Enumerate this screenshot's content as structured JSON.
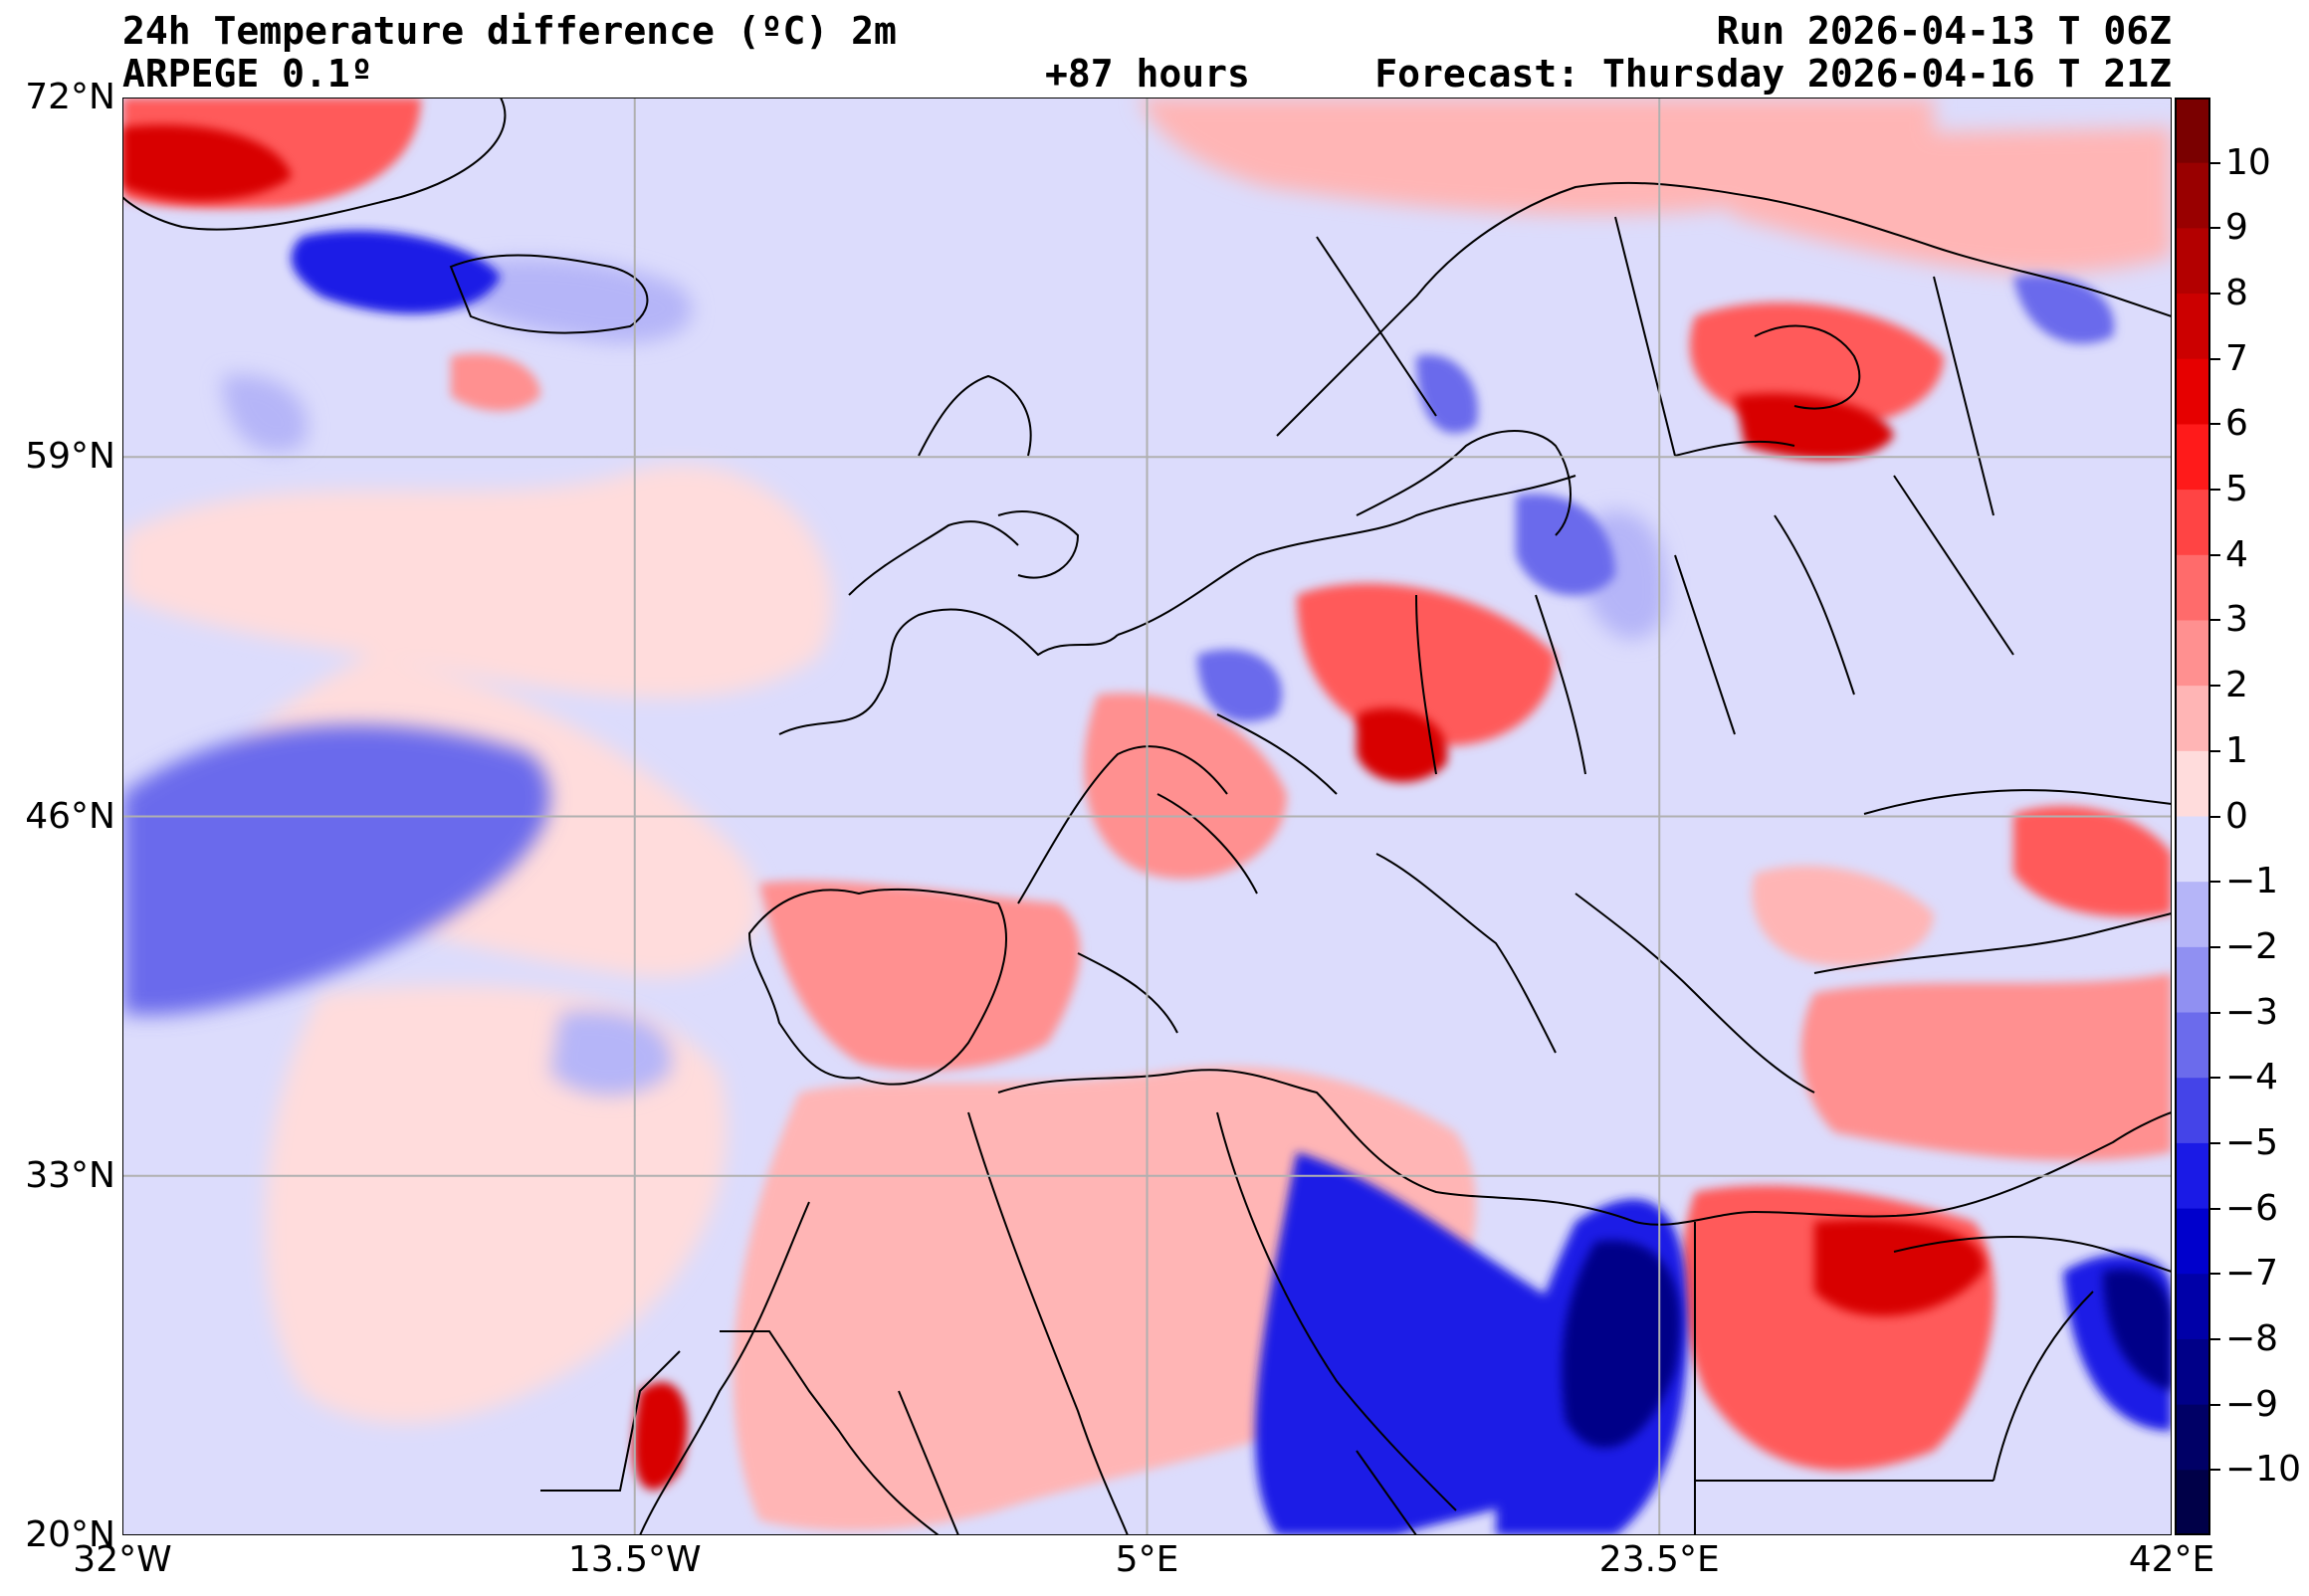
{
  "header": {
    "title": "24h Temperature difference (ºC) 2m",
    "model": "ARPEGE 0.1º",
    "lead_time": "+87 hours",
    "run": "Run 2026-04-13 T 06Z",
    "forecast": "Forecast: Thursday 2026-04-16 T 21Z"
  },
  "axes": {
    "lat_ticks": [
      "72°N",
      "59°N",
      "46°N",
      "33°N",
      "20°N"
    ],
    "lon_ticks": [
      "32°W",
      "13.5°W",
      "5°E",
      "23.5°E",
      "42°E"
    ],
    "lat_values": [
      72,
      59,
      46,
      33,
      20
    ],
    "lon_values": [
      -32,
      -13.5,
      5,
      23.5,
      42
    ],
    "grid": true
  },
  "colorbar": {
    "labels": [
      "10",
      "9",
      "8",
      "7",
      "6",
      "5",
      "4",
      "3",
      "2",
      "1",
      "0",
      "−1",
      "−2",
      "−3",
      "−4",
      "−5",
      "−6",
      "−7",
      "−8",
      "−9",
      "−10"
    ],
    "colors": [
      "#7a0000",
      "#990000",
      "#b30000",
      "#cc0000",
      "#e60000",
      "#ff1a1a",
      "#ff4444",
      "#ff6b6b",
      "#ff9090",
      "#ffb5b5",
      "#ffdcdc",
      "#dcdcfc",
      "#b5b5f8",
      "#9090f2",
      "#6b6bec",
      "#4444e8",
      "#1a1ae6",
      "#0000cc",
      "#0000a8",
      "#000088",
      "#000066",
      "#000048"
    ]
  },
  "map": {
    "ocean_color": "#dcdcfc",
    "warm_light": "#ffdcdc",
    "warm_mid": "#ffb5b5",
    "warm_strong": "#ff9090",
    "warm_hot": "#ff5a5a",
    "warm_peak": "#d80000",
    "cool_mid": "#b5b5f8",
    "cool_strong": "#6b6bec",
    "cool_deep": "#1a1ae6",
    "cool_peak": "#000088"
  }
}
